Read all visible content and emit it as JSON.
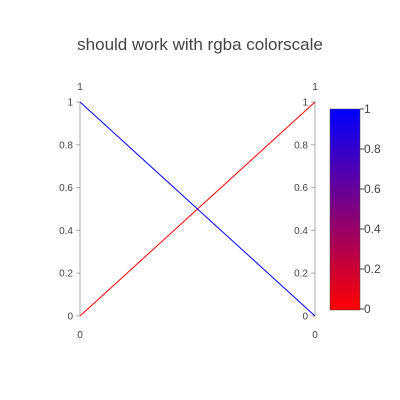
{
  "chart_data": {
    "type": "line",
    "chart_kind": "parallel-coordinates",
    "title": "should work with rgba colorscale",
    "dimensions": [
      {
        "label": "",
        "range": [
          0,
          1
        ],
        "ticks": [
          "0",
          "0.2",
          "0.4",
          "0.6",
          "0.8",
          "1"
        ],
        "range_labels": [
          "0",
          "1"
        ]
      },
      {
        "label": "",
        "range": [
          0,
          1
        ],
        "ticks": [
          "0",
          "0.2",
          "0.4",
          "0.6",
          "0.8",
          "1"
        ],
        "range_labels": [
          "0",
          "1"
        ]
      }
    ],
    "series": [
      {
        "values": [
          0,
          1
        ],
        "color_value": 0
      },
      {
        "values": [
          1,
          0
        ],
        "color_value": 1
      }
    ],
    "colorbar": {
      "range": [
        0,
        1
      ],
      "ticks": [
        "0",
        "0.2",
        "0.4",
        "0.6",
        "0.8",
        "1"
      ],
      "colors": [
        "#ff0000",
        "#0000ff"
      ]
    },
    "colors": {
      "axis": "#444444",
      "axis_line": "#444444"
    }
  }
}
